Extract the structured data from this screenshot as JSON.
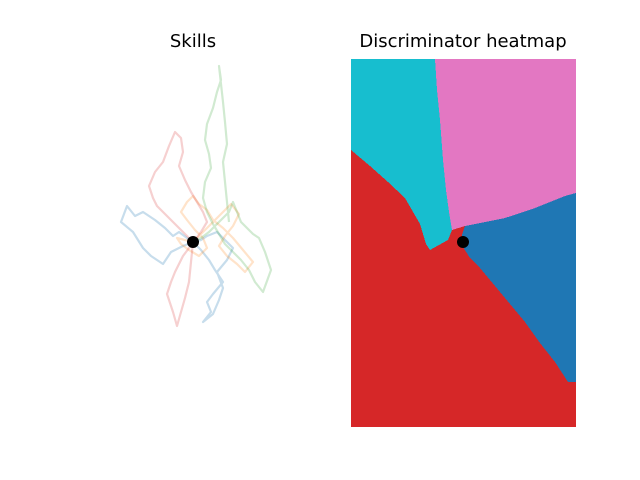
{
  "chart_data": [
    {
      "type": "line",
      "title": "Skills",
      "axes_visible": false,
      "origin": [
        0,
        0
      ],
      "series": [
        {
          "color": "#1f77b4",
          "alpha": 0.25,
          "x": [
            0,
            -6,
            -14,
            -20,
            -28,
            -38,
            -50,
            -58,
            -66,
            -72,
            -60,
            -50,
            -42,
            -30,
            -22,
            -10,
            0,
            8,
            16,
            22,
            30,
            20,
            14,
            18,
            10,
            20,
            26,
            30,
            24,
            34,
            40,
            30,
            24,
            14,
            8,
            0
          ],
          "y": [
            0,
            4,
            10,
            6,
            14,
            22,
            30,
            26,
            36,
            20,
            10,
            -6,
            -14,
            -22,
            -10,
            -4,
            0,
            -8,
            -18,
            -28,
            -40,
            -52,
            -60,
            -70,
            -80,
            -72,
            -58,
            -46,
            -30,
            -18,
            -6,
            4,
            10,
            6,
            2,
            0
          ]
        },
        {
          "color": "#ff7f0e",
          "alpha": 0.22,
          "x": [
            0,
            6,
            14,
            22,
            30,
            38,
            46,
            40,
            32,
            26,
            34,
            44,
            52,
            60,
            50,
            40,
            30,
            20,
            14,
            6,
            0,
            -6,
            -12,
            -6,
            2,
            10,
            14,
            6,
            -4,
            -12,
            -16,
            -8,
            0
          ],
          "y": [
            0,
            6,
            14,
            22,
            30,
            38,
            28,
            16,
            6,
            -4,
            -14,
            -22,
            -30,
            -20,
            -8,
            4,
            14,
            22,
            32,
            38,
            46,
            40,
            30,
            22,
            12,
            4,
            -6,
            -14,
            -8,
            -2,
            4,
            2,
            0
          ]
        },
        {
          "color": "#2ca02c",
          "alpha": 0.22,
          "x": [
            0,
            8,
            16,
            22,
            30,
            36,
            40,
            44,
            48,
            54,
            60,
            66,
            72,
            78,
            70,
            62,
            56,
            48,
            40,
            32,
            26,
            20,
            14,
            10,
            12,
            18,
            16,
            12,
            14,
            20,
            24,
            28,
            26,
            30,
            32,
            34,
            30,
            32,
            34,
            36
          ],
          "y": [
            0,
            4,
            10,
            16,
            24,
            30,
            40,
            30,
            20,
            14,
            8,
            4,
            -10,
            -28,
            -50,
            -40,
            -28,
            -18,
            -10,
            -2,
            8,
            18,
            30,
            44,
            60,
            74,
            88,
            102,
            118,
            134,
            150,
            162,
            176,
            140,
            120,
            98,
            80,
            60,
            40,
            20
          ]
        },
        {
          "color": "#d62728",
          "alpha": 0.22,
          "x": [
            0,
            -6,
            -12,
            -18,
            -24,
            -30,
            -36,
            -40,
            -44,
            -38,
            -30,
            -24,
            -18,
            -12,
            -10,
            -14,
            -8,
            -2,
            4,
            10,
            14,
            8,
            2,
            -4,
            -10,
            -14,
            -18,
            -22,
            -26,
            -20,
            -16,
            -12,
            -8,
            -4,
            0
          ],
          "y": [
            0,
            6,
            12,
            18,
            24,
            30,
            36,
            44,
            56,
            70,
            80,
            96,
            110,
            104,
            90,
            76,
            62,
            50,
            40,
            30,
            20,
            10,
            2,
            -6,
            -14,
            -22,
            -30,
            -40,
            -52,
            -70,
            -84,
            -70,
            -56,
            -40,
            0
          ]
        }
      ]
    },
    {
      "type": "heatmap",
      "title": "Discriminator heatmap",
      "axes_visible": false,
      "marker": [
        0,
        0
      ],
      "xlim": [
        -1,
        1
      ],
      "ylim": [
        -1,
        1
      ],
      "regions": [
        {
          "color": "#17becf"
        },
        {
          "color": "#e377c2"
        },
        {
          "color": "#1f77b4"
        },
        {
          "color": "#d62728"
        }
      ]
    }
  ]
}
